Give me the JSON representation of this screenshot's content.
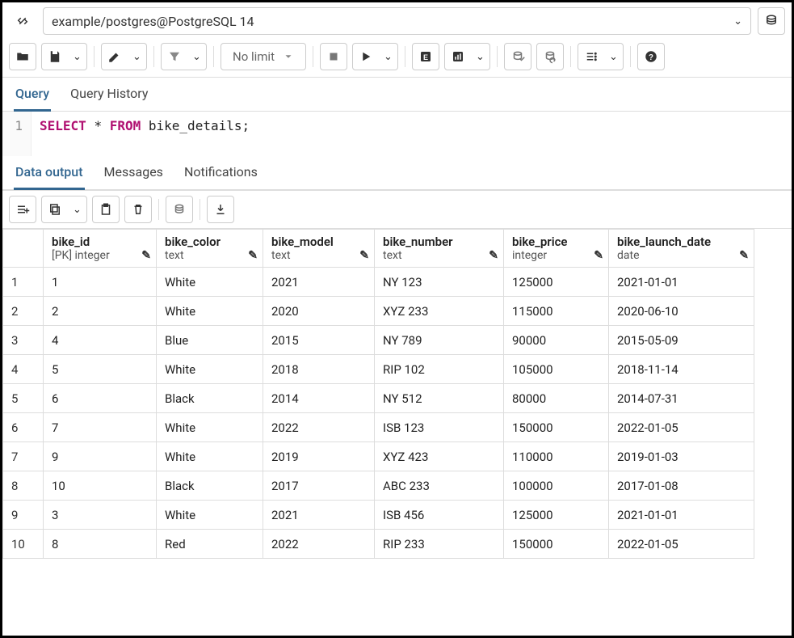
{
  "connection": {
    "label": "example/postgres@PostgreSQL 14"
  },
  "toolbar": {
    "limit_label": "No limit"
  },
  "tabs": {
    "top": [
      "Query",
      "Query History"
    ],
    "top_active_index": 0,
    "bottom": [
      "Data output",
      "Messages",
      "Notifications"
    ],
    "bottom_active_index": 0
  },
  "editor": {
    "line_number": "1",
    "tokens": [
      {
        "t": "SELECT",
        "c": "kw"
      },
      {
        "t": " ",
        "c": "pl"
      },
      {
        "t": "*",
        "c": "pl"
      },
      {
        "t": " ",
        "c": "pl"
      },
      {
        "t": "FROM",
        "c": "kw"
      },
      {
        "t": " ",
        "c": "pl"
      },
      {
        "t": "bike_details;",
        "c": "pl"
      }
    ]
  },
  "results": {
    "columns": [
      {
        "name": "bike_id",
        "type": "[PK] integer",
        "align": "num"
      },
      {
        "name": "bike_color",
        "type": "text",
        "align": "txt"
      },
      {
        "name": "bike_model",
        "type": "text",
        "align": "txt"
      },
      {
        "name": "bike_number",
        "type": "text",
        "align": "txt"
      },
      {
        "name": "bike_price",
        "type": "integer",
        "align": "num"
      },
      {
        "name": "bike_launch_date",
        "type": "date",
        "align": "txt"
      }
    ],
    "rows": [
      [
        "1",
        "White",
        "2021",
        "NY 123",
        "125000",
        "2021-01-01"
      ],
      [
        "2",
        "White",
        "2020",
        "XYZ 233",
        "115000",
        "2020-06-10"
      ],
      [
        "4",
        "Blue",
        "2015",
        "NY 789",
        "90000",
        "2015-05-09"
      ],
      [
        "5",
        "White",
        "2018",
        "RIP 102",
        "105000",
        "2018-11-14"
      ],
      [
        "6",
        "Black",
        "2014",
        "NY 512",
        "80000",
        "2014-07-31"
      ],
      [
        "7",
        "White",
        "2022",
        "ISB 123",
        "150000",
        "2022-01-05"
      ],
      [
        "9",
        "White",
        "2019",
        "XYZ 423",
        "110000",
        "2019-01-03"
      ],
      [
        "10",
        "Black",
        "2017",
        "ABC 233",
        "100000",
        "2017-01-08"
      ],
      [
        "3",
        "White",
        "2021",
        "ISB 456",
        "125000",
        "2021-01-01"
      ],
      [
        "8",
        "Red",
        "2022",
        "RIP 233",
        "150000",
        "2022-01-05"
      ]
    ]
  },
  "colors": {
    "accent": "#326690",
    "keyword": "#b01071",
    "border": "#dddddd"
  }
}
